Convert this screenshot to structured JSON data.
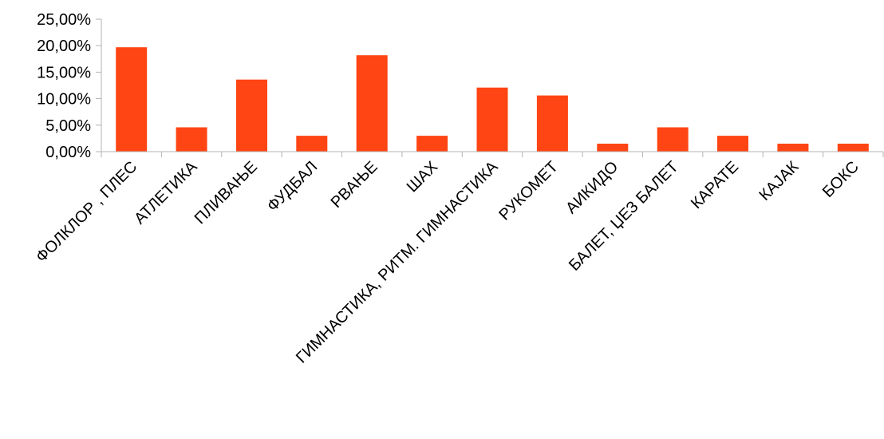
{
  "chart_data": {
    "type": "bar",
    "title": "",
    "xlabel": "",
    "ylabel": "",
    "ylim": [
      0,
      25
    ],
    "y_ticks": [
      "0,00%",
      "5,00%",
      "10,00%",
      "15,00%",
      "20,00%",
      "25,00%"
    ],
    "grid": false,
    "legend": "none",
    "bar_color": "#ff4513",
    "categories": [
      "ФОЛКЛОР , ПЛЕС",
      "АТЛЕТИКА",
      "ПЛИВАЊЕ",
      "ФУДБАЛ",
      "РВАЊЕ",
      "ШАХ",
      "ГИМНАСТИКА, РИТМ. ГИМНАСТИКА",
      "РУКОМЕТ",
      "АИКИДО",
      "БАЛЕТ, ЏЕЗ БАЛЕТ",
      "КАРАТЕ",
      "КАЈАК",
      "БОКС"
    ],
    "values": [
      19.7,
      4.6,
      13.6,
      3.0,
      18.2,
      3.0,
      12.1,
      10.6,
      1.5,
      4.6,
      3.0,
      1.5,
      1.5
    ]
  }
}
